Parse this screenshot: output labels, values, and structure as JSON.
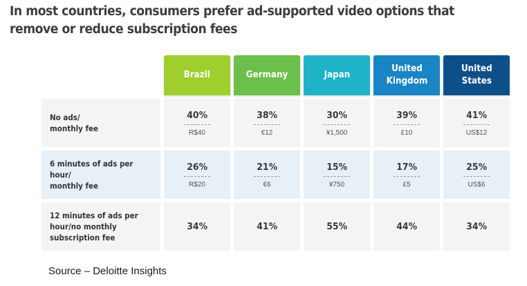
{
  "title": {
    "line1": "In most countries, consumers prefer ad-supported video options that",
    "line2": "remove or reduce subscription fees"
  },
  "source": "Source – Deloitte Insights",
  "colors": {
    "brazil": "#9fcf2e",
    "germany": "#6cbf4a",
    "japan": "#1fb3c7",
    "united_kingdom": "#1a85c4",
    "united_states": "#0e4f8a"
  },
  "chart_data": {
    "type": "table",
    "columns": [
      {
        "key": "brazil",
        "label": "Brazil"
      },
      {
        "key": "germany",
        "label": "Germany"
      },
      {
        "key": "japan",
        "label": "Japan"
      },
      {
        "key": "united_kingdom",
        "label": "United Kingdom"
      },
      {
        "key": "united_states",
        "label": "United States"
      }
    ],
    "rows": [
      {
        "label": "No ads/ monthly fee",
        "values": [
          "40%",
          "38%",
          "30%",
          "39%",
          "41%"
        ],
        "fees": [
          "R$40",
          "€12",
          "¥1,500",
          "£10",
          "US$12"
        ]
      },
      {
        "label": "6 minutes of ads per hour/ monthly fee",
        "values": [
          "26%",
          "21%",
          "15%",
          "17%",
          "25%"
        ],
        "fees": [
          "R$20",
          "€6",
          "¥750",
          "£5",
          "US$6"
        ]
      },
      {
        "label": "12 minutes of ads per hour/no monthly subscription fee",
        "values": [
          "34%",
          "41%",
          "55%",
          "44%",
          "34%"
        ],
        "fees": []
      }
    ]
  }
}
